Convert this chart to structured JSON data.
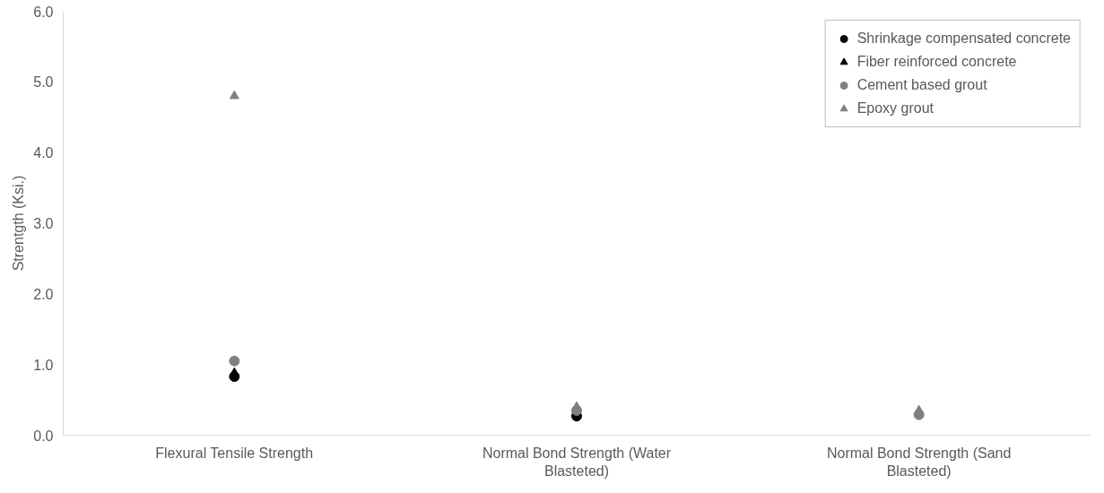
{
  "chart_data": {
    "type": "scatter",
    "ylabel": "Strentgth (Ksi.)",
    "categories": [
      "Flexural Tensile Strength",
      "Normal Bond Strength (Water Blasteted)",
      "Normal Bond Strength (Sand Blasteted)"
    ],
    "series": [
      {
        "name": "Shrinkage compensated concrete",
        "color": "#000000",
        "marker": "circle",
        "values": [
          0.83,
          0.27,
          null
        ]
      },
      {
        "name": "Fiber reinforced concrete",
        "color": "#000000",
        "marker": "triangle",
        "values": [
          0.88,
          null,
          null
        ]
      },
      {
        "name": "Cement based grout",
        "color": "#808080",
        "marker": "circle",
        "values": [
          1.05,
          0.35,
          0.29
        ]
      },
      {
        "name": "Epoxy grout",
        "color": "#808080",
        "marker": "triangle",
        "values": [
          4.8,
          0.4,
          0.35
        ]
      }
    ],
    "ylim": [
      0,
      6
    ],
    "yticks": [
      {
        "value": 0,
        "label": "0.0"
      },
      {
        "value": 1,
        "label": "1.0"
      },
      {
        "value": 2,
        "label": "2.0"
      },
      {
        "value": 3,
        "label": "3.0"
      },
      {
        "value": 4,
        "label": "4.0"
      },
      {
        "value": 5,
        "label": "5.0"
      },
      {
        "value": 6,
        "label": "6.0"
      }
    ],
    "grid": false,
    "legend": "top right"
  }
}
